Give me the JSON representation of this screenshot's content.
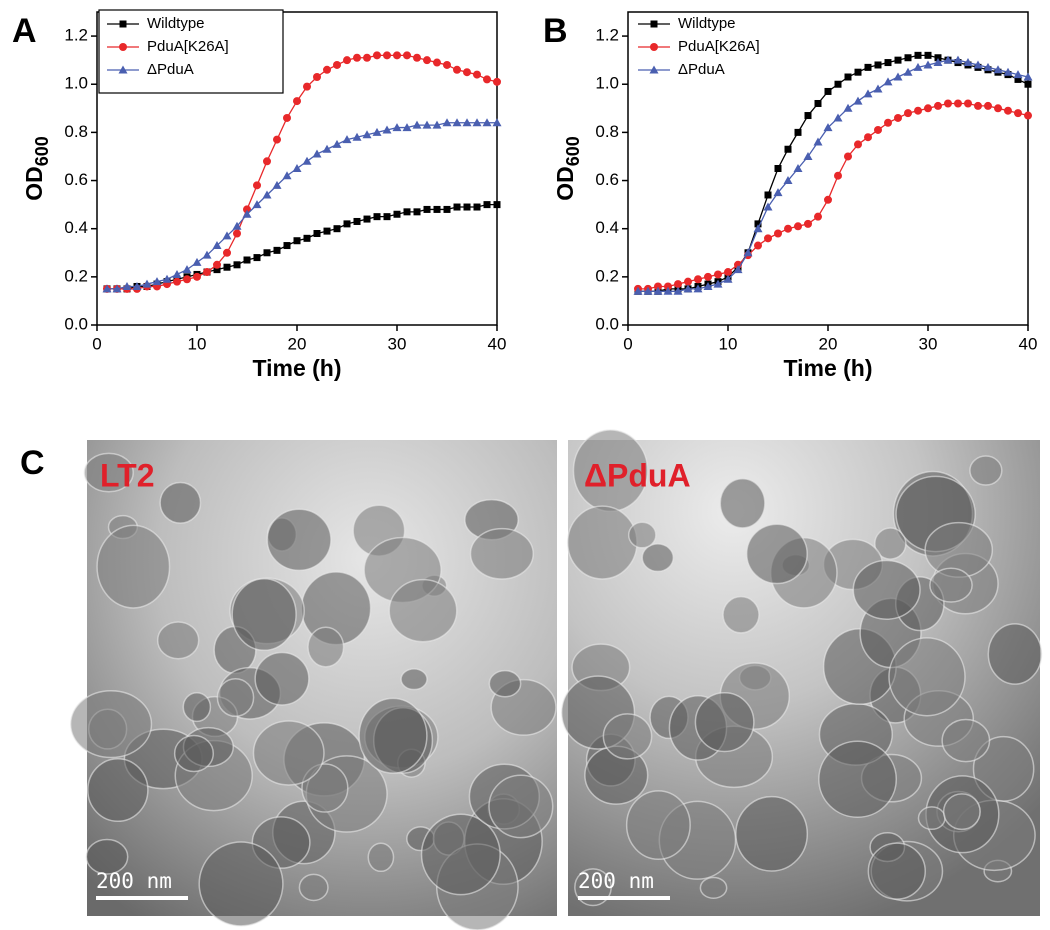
{
  "chart_data": [
    {
      "type": "line",
      "panel_label": "A",
      "x_label": "Time (h)",
      "y_label": "OD",
      "y_label_subscript": "600",
      "xlim": [
        0,
        40
      ],
      "ylim": [
        0,
        1.3
      ],
      "xticks": [
        0,
        10,
        20,
        30,
        40
      ],
      "yticks": [
        {
          "value": 0,
          "label": "0.0"
        },
        0.2,
        0.4,
        0.6,
        0.8,
        {
          "value": 1,
          "label": "1.0"
        },
        1.2
      ],
      "legend": "top-left",
      "legend_frame": true,
      "x": [
        1,
        2,
        3,
        4,
        5,
        6,
        7,
        8,
        9,
        10,
        11,
        12,
        13,
        14,
        15,
        16,
        17,
        18,
        19,
        20,
        21,
        22,
        23,
        24,
        25,
        26,
        27,
        28,
        29,
        30,
        31,
        32,
        33,
        34,
        35,
        36,
        37,
        38,
        39,
        40
      ],
      "series": [
        {
          "name": "Wildtype",
          "color": "#000000",
          "marker": "square",
          "values": [
            0.15,
            0.15,
            0.15,
            0.16,
            0.16,
            0.17,
            0.18,
            0.19,
            0.2,
            0.21,
            0.22,
            0.23,
            0.24,
            0.25,
            0.27,
            0.28,
            0.3,
            0.31,
            0.33,
            0.35,
            0.36,
            0.38,
            0.39,
            0.4,
            0.42,
            0.43,
            0.44,
            0.45,
            0.45,
            0.46,
            0.47,
            0.47,
            0.48,
            0.48,
            0.48,
            0.49,
            0.49,
            0.49,
            0.5,
            0.5
          ]
        },
        {
          "name": "PduA[K26A]",
          "color": "#e8282a",
          "marker": "circle",
          "values": [
            0.15,
            0.15,
            0.15,
            0.15,
            0.16,
            0.16,
            0.17,
            0.18,
            0.19,
            0.2,
            0.22,
            0.25,
            0.3,
            0.38,
            0.48,
            0.58,
            0.68,
            0.77,
            0.86,
            0.93,
            0.99,
            1.03,
            1.06,
            1.08,
            1.1,
            1.11,
            1.11,
            1.12,
            1.12,
            1.12,
            1.12,
            1.11,
            1.1,
            1.09,
            1.08,
            1.06,
            1.05,
            1.04,
            1.02,
            1.01
          ]
        },
        {
          "name": "ΔPduA",
          "color": "#4a5fb0",
          "marker": "triangle",
          "values": [
            0.15,
            0.15,
            0.16,
            0.16,
            0.17,
            0.18,
            0.19,
            0.21,
            0.23,
            0.26,
            0.29,
            0.33,
            0.37,
            0.41,
            0.46,
            0.5,
            0.54,
            0.58,
            0.62,
            0.65,
            0.68,
            0.71,
            0.73,
            0.75,
            0.77,
            0.78,
            0.79,
            0.8,
            0.81,
            0.82,
            0.82,
            0.83,
            0.83,
            0.83,
            0.84,
            0.84,
            0.84,
            0.84,
            0.84,
            0.84
          ]
        }
      ]
    },
    {
      "type": "line",
      "panel_label": "B",
      "x_label": "Time (h)",
      "y_label": "OD",
      "y_label_subscript": "600",
      "xlim": [
        0,
        40
      ],
      "ylim": [
        0,
        1.3
      ],
      "xticks": [
        0,
        10,
        20,
        30,
        40
      ],
      "yticks": [
        {
          "value": 0,
          "label": "0.0"
        },
        0.2,
        0.4,
        0.6,
        0.8,
        {
          "value": 1,
          "label": "1.0"
        },
        1.2
      ],
      "legend": "top-left",
      "legend_frame": false,
      "x": [
        1,
        2,
        3,
        4,
        5,
        6,
        7,
        8,
        9,
        10,
        11,
        12,
        13,
        14,
        15,
        16,
        17,
        18,
        19,
        20,
        21,
        22,
        23,
        24,
        25,
        26,
        27,
        28,
        29,
        30,
        31,
        32,
        33,
        34,
        35,
        36,
        37,
        38,
        39,
        40
      ],
      "series": [
        {
          "name": "Wildtype",
          "color": "#000000",
          "marker": "square",
          "values": [
            0.14,
            0.14,
            0.14,
            0.15,
            0.15,
            0.15,
            0.16,
            0.17,
            0.18,
            0.2,
            0.24,
            0.3,
            0.42,
            0.54,
            0.65,
            0.73,
            0.8,
            0.87,
            0.92,
            0.97,
            1.0,
            1.03,
            1.05,
            1.07,
            1.08,
            1.09,
            1.1,
            1.11,
            1.12,
            1.12,
            1.11,
            1.1,
            1.09,
            1.08,
            1.07,
            1.06,
            1.05,
            1.04,
            1.02,
            1.0
          ]
        },
        {
          "name": "PduA[K26A]",
          "color": "#e8282a",
          "marker": "circle",
          "values": [
            0.15,
            0.15,
            0.16,
            0.16,
            0.17,
            0.18,
            0.19,
            0.2,
            0.21,
            0.22,
            0.25,
            0.29,
            0.33,
            0.36,
            0.38,
            0.4,
            0.41,
            0.42,
            0.45,
            0.52,
            0.62,
            0.7,
            0.75,
            0.78,
            0.81,
            0.84,
            0.86,
            0.88,
            0.89,
            0.9,
            0.91,
            0.92,
            0.92,
            0.92,
            0.91,
            0.91,
            0.9,
            0.89,
            0.88,
            0.87
          ]
        },
        {
          "name": "ΔPduA",
          "color": "#4a5fb0",
          "marker": "triangle",
          "values": [
            0.14,
            0.14,
            0.14,
            0.14,
            0.14,
            0.15,
            0.15,
            0.16,
            0.17,
            0.19,
            0.23,
            0.3,
            0.4,
            0.49,
            0.55,
            0.6,
            0.65,
            0.7,
            0.76,
            0.82,
            0.86,
            0.9,
            0.93,
            0.96,
            0.98,
            1.01,
            1.03,
            1.05,
            1.07,
            1.08,
            1.09,
            1.1,
            1.1,
            1.09,
            1.08,
            1.07,
            1.06,
            1.05,
            1.04,
            1.03
          ]
        }
      ]
    }
  ],
  "micrographs": {
    "panel_label": "C",
    "images": [
      {
        "label": "LT2",
        "scale_bar": "200 nm"
      },
      {
        "label": "ΔPduA",
        "scale_bar": "200 nm"
      }
    ]
  }
}
